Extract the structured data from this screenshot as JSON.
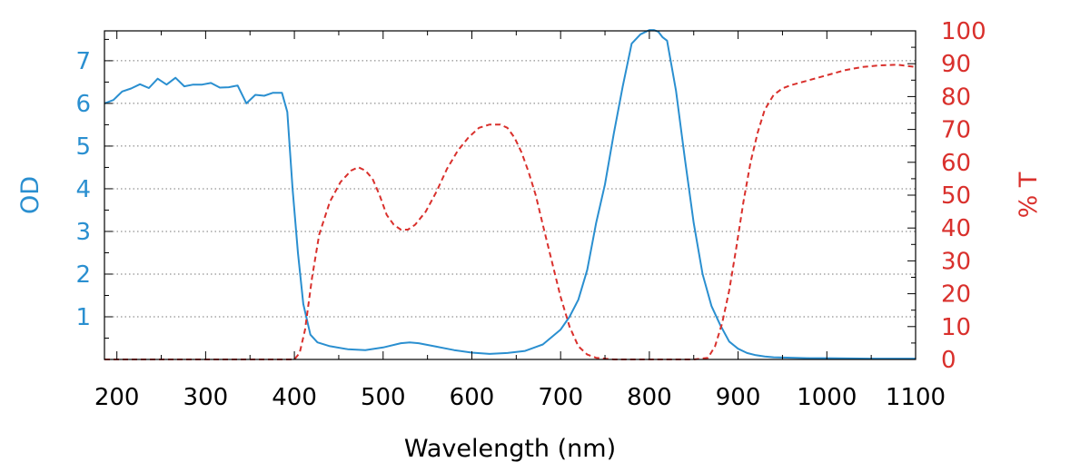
{
  "chart_data": {
    "type": "line",
    "xlabel": "Wavelength (nm)",
    "ylabel_left": "OD",
    "ylabel_right": "% T",
    "xlim": [
      186,
      1100
    ],
    "ylim_left": [
      0,
      7.7
    ],
    "ylim_right": [
      0,
      100
    ],
    "x_ticks": [
      200,
      300,
      400,
      500,
      600,
      700,
      800,
      900,
      1000,
      1100
    ],
    "y_left_ticks": [
      1,
      2,
      3,
      4,
      5,
      6,
      7
    ],
    "y_right_ticks": [
      0,
      10,
      20,
      30,
      40,
      50,
      60,
      70,
      80,
      90,
      100
    ],
    "grid": "horizontal dotted at left-axis ticks",
    "colors": {
      "od": "#2a8fd0",
      "transmission": "#d9302c",
      "axes": "#000000"
    },
    "series": [
      {
        "axis": "left",
        "style": "solid",
        "x": [
          186,
          196,
          206,
          216,
          226,
          236,
          246,
          256,
          266,
          276,
          286,
          296,
          306,
          316,
          326,
          336,
          346,
          356,
          366,
          376,
          386,
          392,
          398,
          404,
          410,
          418,
          426,
          440,
          460,
          480,
          500,
          520,
          530,
          540,
          560,
          580,
          600,
          620,
          640,
          660,
          680,
          700,
          710,
          720,
          730,
          740,
          750,
          760,
          770,
          780,
          790,
          800,
          805,
          810,
          815,
          820,
          830,
          840,
          850,
          860,
          870,
          880,
          890,
          900,
          910,
          920,
          930,
          940,
          960,
          980,
          1000,
          1050,
          1100
        ],
        "y": [
          6.0,
          6.08,
          6.28,
          6.35,
          6.45,
          6.36,
          6.58,
          6.44,
          6.6,
          6.4,
          6.44,
          6.44,
          6.48,
          6.37,
          6.38,
          6.42,
          6.0,
          6.2,
          6.18,
          6.25,
          6.25,
          5.8,
          4.0,
          2.5,
          1.3,
          0.58,
          0.4,
          0.31,
          0.24,
          0.22,
          0.28,
          0.38,
          0.4,
          0.38,
          0.3,
          0.22,
          0.16,
          0.13,
          0.15,
          0.2,
          0.35,
          0.7,
          1.0,
          1.4,
          2.1,
          3.2,
          4.1,
          5.3,
          6.4,
          7.4,
          7.62,
          7.72,
          7.72,
          7.68,
          7.55,
          7.47,
          6.3,
          4.7,
          3.2,
          2.0,
          1.25,
          0.8,
          0.42,
          0.25,
          0.15,
          0.1,
          0.07,
          0.05,
          0.04,
          0.03,
          0.03,
          0.02,
          0.02
        ]
      },
      {
        "axis": "right",
        "style": "dashed",
        "x": [
          186,
          300,
          380,
          400,
          406,
          412,
          420,
          428,
          440,
          452,
          464,
          472,
          480,
          488,
          496,
          504,
          512,
          520,
          528,
          536,
          548,
          560,
          572,
          584,
          596,
          608,
          620,
          632,
          640,
          648,
          656,
          664,
          672,
          680,
          690,
          700,
          710,
          720,
          730,
          740,
          760,
          800,
          850,
          866,
          874,
          882,
          890,
          898,
          906,
          914,
          922,
          930,
          940,
          950,
          960,
          980,
          1000,
          1020,
          1040,
          1060,
          1080,
          1100
        ],
        "y": [
          0,
          0,
          0,
          0,
          2,
          9,
          25,
          38,
          48,
          54,
          57.5,
          58.5,
          57.5,
          55,
          50,
          44,
          41,
          39.5,
          39.5,
          41,
          45,
          51,
          58,
          63.5,
          67.5,
          70.5,
          71.5,
          71.5,
          70.5,
          67.5,
          63,
          57,
          50,
          41,
          30,
          19,
          10,
          4,
          1.5,
          0.5,
          0,
          0,
          0,
          0.5,
          4,
          11,
          21,
          34,
          48,
          60,
          69,
          76,
          80.5,
          82.5,
          83.5,
          85,
          86.5,
          88,
          89,
          89.5,
          89.7,
          89
        ]
      }
    ]
  }
}
